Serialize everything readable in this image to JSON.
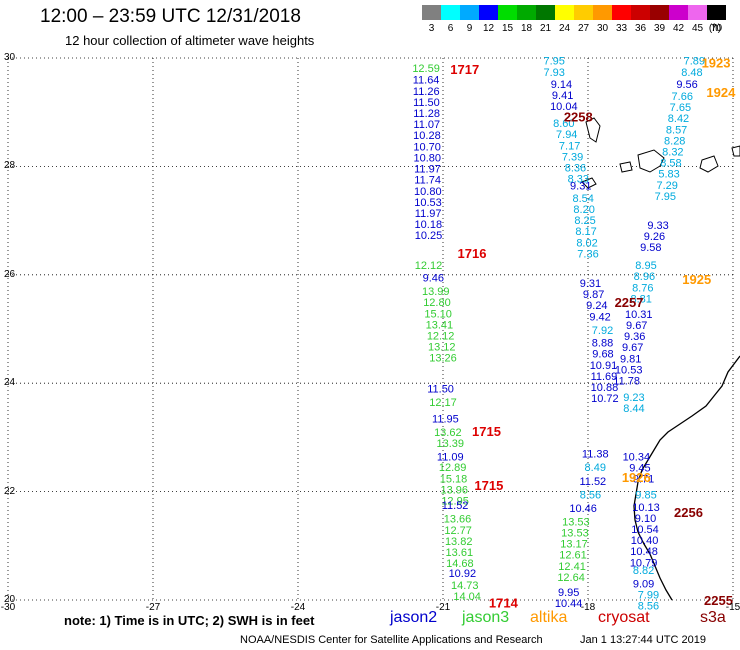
{
  "header": {
    "title": "12:00 – 23:59 UTC 12/31/2018",
    "subtitle": "12 hour collection of altimeter wave heights"
  },
  "scale": {
    "unit": "(ft)",
    "bins": [
      {
        "label": "3",
        "color": "#808080"
      },
      {
        "label": "6",
        "color": "#00ffff"
      },
      {
        "label": "9",
        "color": "#00aaff"
      },
      {
        "label": "12",
        "color": "#0000ff"
      },
      {
        "label": "15",
        "color": "#00dd00"
      },
      {
        "label": "18",
        "color": "#00aa00"
      },
      {
        "label": "21",
        "color": "#007700"
      },
      {
        "label": "24",
        "color": "#ffff00"
      },
      {
        "label": "27",
        "color": "#ffcc00"
      },
      {
        "label": "30",
        "color": "#ff9900"
      },
      {
        "label": "33",
        "color": "#ff0000"
      },
      {
        "label": "36",
        "color": "#cc0000"
      },
      {
        "label": "39",
        "color": "#990000"
      },
      {
        "label": "42",
        "color": "#cc00cc"
      },
      {
        "label": "45",
        "color": "#ee66ee"
      },
      {
        "label": "70",
        "color": "#000000"
      }
    ]
  },
  "axes": {
    "lat_labels": [
      "30",
      "28",
      "26",
      "24",
      "22",
      "20"
    ],
    "lon_labels": [
      "-30",
      "-27",
      "-24",
      "-21",
      "-18",
      "-15"
    ]
  },
  "colors": {
    "jason2": "#0000cc",
    "jason3": "#33cc33",
    "altika": "#ff9900",
    "cryosat": "#cc0000",
    "s3a": "#880000",
    "cyan": "#00aadd"
  },
  "tracks": [
    {
      "sat": "jason3",
      "lon_start": -21.35,
      "lon_end": -21.35,
      "lat_top": 29.82,
      "values": [
        "12.59"
      ]
    },
    {
      "sat": "jason2",
      "lon_start": -21.35,
      "lon_end": -21.3,
      "lat_top": 29.6,
      "values": [
        "11.64",
        "11.26",
        "11.50",
        "11.28",
        "11.07",
        "10.28",
        "10.70",
        "10.80",
        "11.97",
        "11.74",
        "10.80",
        "10.53",
        "11.97",
        "10.18",
        "10.25"
      ]
    },
    {
      "sat": "jason3",
      "lon_start": -21.3,
      "lon_end": -21.15,
      "lat_top": 26.18,
      "values": [
        "12.12"
      ]
    },
    {
      "sat": "jason2",
      "lon_start": -21.2,
      "lon_end": -21.2,
      "lat_top": 25.95,
      "values": [
        "9.46"
      ]
    },
    {
      "sat": "jason3",
      "lon_start": -21.15,
      "lon_end": -21.0,
      "lat_top": 25.7,
      "values": [
        "13.99",
        "12.80",
        "15.10",
        "13.41",
        "12.12",
        "13.12",
        "13.26"
      ]
    },
    {
      "sat": "jason2",
      "lon_start": -21.05,
      "lon_end": -21.05,
      "lat_top": 23.9,
      "values": [
        "11.50"
      ]
    },
    {
      "sat": "jason3",
      "lon_start": -21.0,
      "lon_end": -21.0,
      "lat_top": 23.65,
      "values": [
        "12.17"
      ]
    },
    {
      "sat": "jason2",
      "lon_start": -20.95,
      "lon_end": -20.95,
      "lat_top": 23.35,
      "values": [
        "11.95"
      ]
    },
    {
      "sat": "jason3",
      "lon_start": -20.9,
      "lon_end": -20.85,
      "lat_top": 23.1,
      "values": [
        "13.62",
        "13.39"
      ]
    },
    {
      "sat": "jason2",
      "lon_start": -20.85,
      "lon_end": -20.85,
      "lat_top": 22.65,
      "values": [
        "11.09"
      ]
    },
    {
      "sat": "jason3",
      "lon_start": -20.8,
      "lon_end": -20.75,
      "lat_top": 22.45,
      "values": [
        "12.89",
        "15.18",
        "13.96",
        "12.95"
      ]
    },
    {
      "sat": "jason2",
      "lon_start": -20.75,
      "lon_end": -20.75,
      "lat_top": 21.75,
      "values": [
        "11.52"
      ]
    },
    {
      "sat": "jason3",
      "lon_start": -20.7,
      "lon_end": -20.65,
      "lat_top": 21.5,
      "values": [
        "13.66",
        "12.77",
        "13.82",
        "13.61",
        "14.68"
      ]
    },
    {
      "sat": "jason2",
      "lon_start": -20.6,
      "lon_end": -20.6,
      "lat_top": 20.5,
      "values": [
        "10.92"
      ]
    },
    {
      "sat": "jason3",
      "lon_start": -20.55,
      "lon_end": -20.5,
      "lat_top": 20.28,
      "values": [
        "14.73",
        "14.04"
      ]
    },
    {
      "sat": "cyan",
      "lon_start": -18.7,
      "lon_end": -18.7,
      "lat_top": 29.95,
      "values": [
        "7.95",
        "7.93"
      ]
    },
    {
      "sat": "jason2",
      "lon_start": -18.55,
      "lon_end": -18.5,
      "lat_top": 29.52,
      "values": [
        "9.14",
        "9.41",
        "10.04"
      ]
    },
    {
      "sat": "cyan",
      "lon_start": -18.5,
      "lon_end": -18.2,
      "lat_top": 28.8,
      "values": [
        "8.60",
        "7.94",
        "7.17",
        "7.39",
        "8.36",
        "8.33"
      ]
    },
    {
      "sat": "jason2",
      "lon_start": -18.15,
      "lon_end": -18.15,
      "lat_top": 27.65,
      "values": [
        "9.31"
      ]
    },
    {
      "sat": "cyan",
      "lon_start": -18.1,
      "lon_end": -18.0,
      "lat_top": 27.42,
      "values": [
        "8.54",
        "8.20",
        "8.25",
        "8.17",
        "8.02",
        "7.36"
      ]
    },
    {
      "sat": "jason2",
      "lon_start": -17.95,
      "lon_end": -17.75,
      "lat_top": 25.85,
      "values": [
        "9.31",
        "9.87",
        "9.24",
        "9.42"
      ]
    },
    {
      "sat": "cyan",
      "lon_start": -17.7,
      "lon_end": -17.7,
      "lat_top": 24.98,
      "values": [
        "7.92"
      ]
    },
    {
      "sat": "jason2",
      "lon_start": -17.7,
      "lon_end": -17.65,
      "lat_top": 24.75,
      "values": [
        "8.88",
        "9.68",
        "10.91",
        "11.69",
        "10.88",
        "10.72"
      ]
    },
    {
      "sat": "jason2",
      "lon_start": -17.85,
      "lon_end": -17.85,
      "lat_top": 22.7,
      "values": [
        "11.38"
      ]
    },
    {
      "sat": "cyan",
      "lon_start": -17.85,
      "lon_end": -17.85,
      "lat_top": 22.45,
      "values": [
        "8.49"
      ]
    },
    {
      "sat": "jason2",
      "lon_start": -17.9,
      "lon_end": -17.9,
      "lat_top": 22.2,
      "values": [
        "11.52"
      ]
    },
    {
      "sat": "cyan",
      "lon_start": -17.95,
      "lon_end": -17.95,
      "lat_top": 21.95,
      "values": [
        "8.56"
      ]
    },
    {
      "sat": "jason2",
      "lon_start": -18.1,
      "lon_end": -18.1,
      "lat_top": 21.7,
      "values": [
        "10.46"
      ]
    },
    {
      "sat": "jason3",
      "lon_start": -18.25,
      "lon_end": -18.35,
      "lat_top": 21.45,
      "values": [
        "13.53",
        "13.53",
        "13.17",
        "12.61",
        "12.41",
        "12.64"
      ]
    },
    {
      "sat": "jason2",
      "lon_start": -18.4,
      "lon_end": -18.4,
      "lat_top": 20.15,
      "values": [
        "9.95",
        "10.44"
      ]
    },
    {
      "sat": "cyan",
      "lon_start": -15.8,
      "lon_end": -15.85,
      "lat_top": 29.95,
      "values": [
        "7.89",
        "8.48"
      ]
    },
    {
      "sat": "jason2",
      "lon_start": -15.95,
      "lon_end": -15.95,
      "lat_top": 29.52,
      "values": [
        "9.56"
      ]
    },
    {
      "sat": "cyan",
      "lon_start": -16.05,
      "lon_end": -16.4,
      "lat_top": 29.3,
      "values": [
        "7.66",
        "7.65",
        "8.42",
        "8.57",
        "8.28",
        "8.32",
        "8.58",
        "5.83",
        "7.29",
        "7.95"
      ]
    },
    {
      "sat": "jason2",
      "lon_start": -16.55,
      "lon_end": -16.7,
      "lat_top": 26.92,
      "values": [
        "9.33",
        "9.26",
        "9.58"
      ]
    },
    {
      "sat": "cyan",
      "lon_start": -16.8,
      "lon_end": -16.9,
      "lat_top": 26.18,
      "values": [
        "8.95",
        "8.96",
        "8.76",
        "8.81"
      ]
    },
    {
      "sat": "jason2",
      "lon_start": -16.95,
      "lon_end": -17.2,
      "lat_top": 25.28,
      "values": [
        "10.31",
        "9.67",
        "9.36",
        "9.67",
        "9.81",
        "10.53",
        "11.78"
      ]
    },
    {
      "sat": "cyan",
      "lon_start": -17.05,
      "lon_end": -17.05,
      "lat_top": 23.75,
      "values": [
        "9.23",
        "8.44"
      ]
    },
    {
      "sat": "jason2",
      "lon_start": -17.0,
      "lon_end": -16.85,
      "lat_top": 22.65,
      "values": [
        "10.34",
        "9.45",
        "9.71"
      ]
    },
    {
      "sat": "cyan",
      "lon_start": -16.8,
      "lon_end": -16.8,
      "lat_top": 21.95,
      "values": [
        "9.85"
      ]
    },
    {
      "sat": "jason2",
      "lon_start": -16.8,
      "lon_end": -16.85,
      "lat_top": 21.72,
      "values": [
        "10.13",
        "9.10",
        "10.54",
        "10.40",
        "10.48",
        "10.79"
      ]
    },
    {
      "sat": "cyan",
      "lon_start": -16.85,
      "lon_end": -16.85,
      "lat_top": 20.55,
      "values": [
        "8.82"
      ]
    },
    {
      "sat": "jason2",
      "lon_start": -16.85,
      "lon_end": -16.85,
      "lat_top": 20.3,
      "values": [
        "9.09"
      ]
    },
    {
      "sat": "cyan",
      "lon_start": -16.75,
      "lon_end": -16.75,
      "lat_top": 20.1,
      "values": [
        "7.99",
        "8.56"
      ]
    }
  ],
  "time_labels": [
    {
      "text": "1717",
      "color": "#dd0000",
      "lon": -20.85,
      "lat": 29.8
    },
    {
      "text": "1716",
      "color": "#dd0000",
      "lon": -20.7,
      "lat": 26.4
    },
    {
      "text": "1715",
      "color": "#dd0000",
      "lon": -20.4,
      "lat": 23.12
    },
    {
      "text": "1715",
      "color": "#dd0000",
      "lon": -20.35,
      "lat": 22.12
    },
    {
      "text": "1714",
      "color": "#dd0000",
      "lon": -20.05,
      "lat": 19.95
    },
    {
      "text": "2258",
      "color": "#880000",
      "lon": -18.5,
      "lat": 28.92
    },
    {
      "text": "2257",
      "color": "#880000",
      "lon": -17.45,
      "lat": 25.5
    },
    {
      "text": "2256",
      "color": "#880000",
      "lon": -16.22,
      "lat": 21.62
    },
    {
      "text": "2255",
      "color": "#880000",
      "lon": -15.6,
      "lat": 20.0
    },
    {
      "text": "1923",
      "color": "#ff9900",
      "lon": -15.65,
      "lat": 29.92
    },
    {
      "text": "1924",
      "color": "#ff9900",
      "lon": -15.55,
      "lat": 29.37
    },
    {
      "text": "1925",
      "color": "#ff9900",
      "lon": -16.05,
      "lat": 25.92
    },
    {
      "text": "1926",
      "color": "#ff9900",
      "lon": -17.3,
      "lat": 22.27
    }
  ],
  "footer": {
    "note": "note:  1) Time is in UTC;  2) SWH is in feet",
    "legend": [
      {
        "label": "jason2",
        "color": "#0000cc"
      },
      {
        "label": "jason3",
        "color": "#33cc33"
      },
      {
        "label": "altika",
        "color": "#ff9900"
      },
      {
        "label": "cryosat",
        "color": "#cc0000"
      },
      {
        "label": "s3a",
        "color": "#880000"
      }
    ],
    "credit": "NOAA/NESDIS Center for Satellite Applications and Research",
    "generated": "Jan  1 13:27:44 UTC 2019"
  }
}
